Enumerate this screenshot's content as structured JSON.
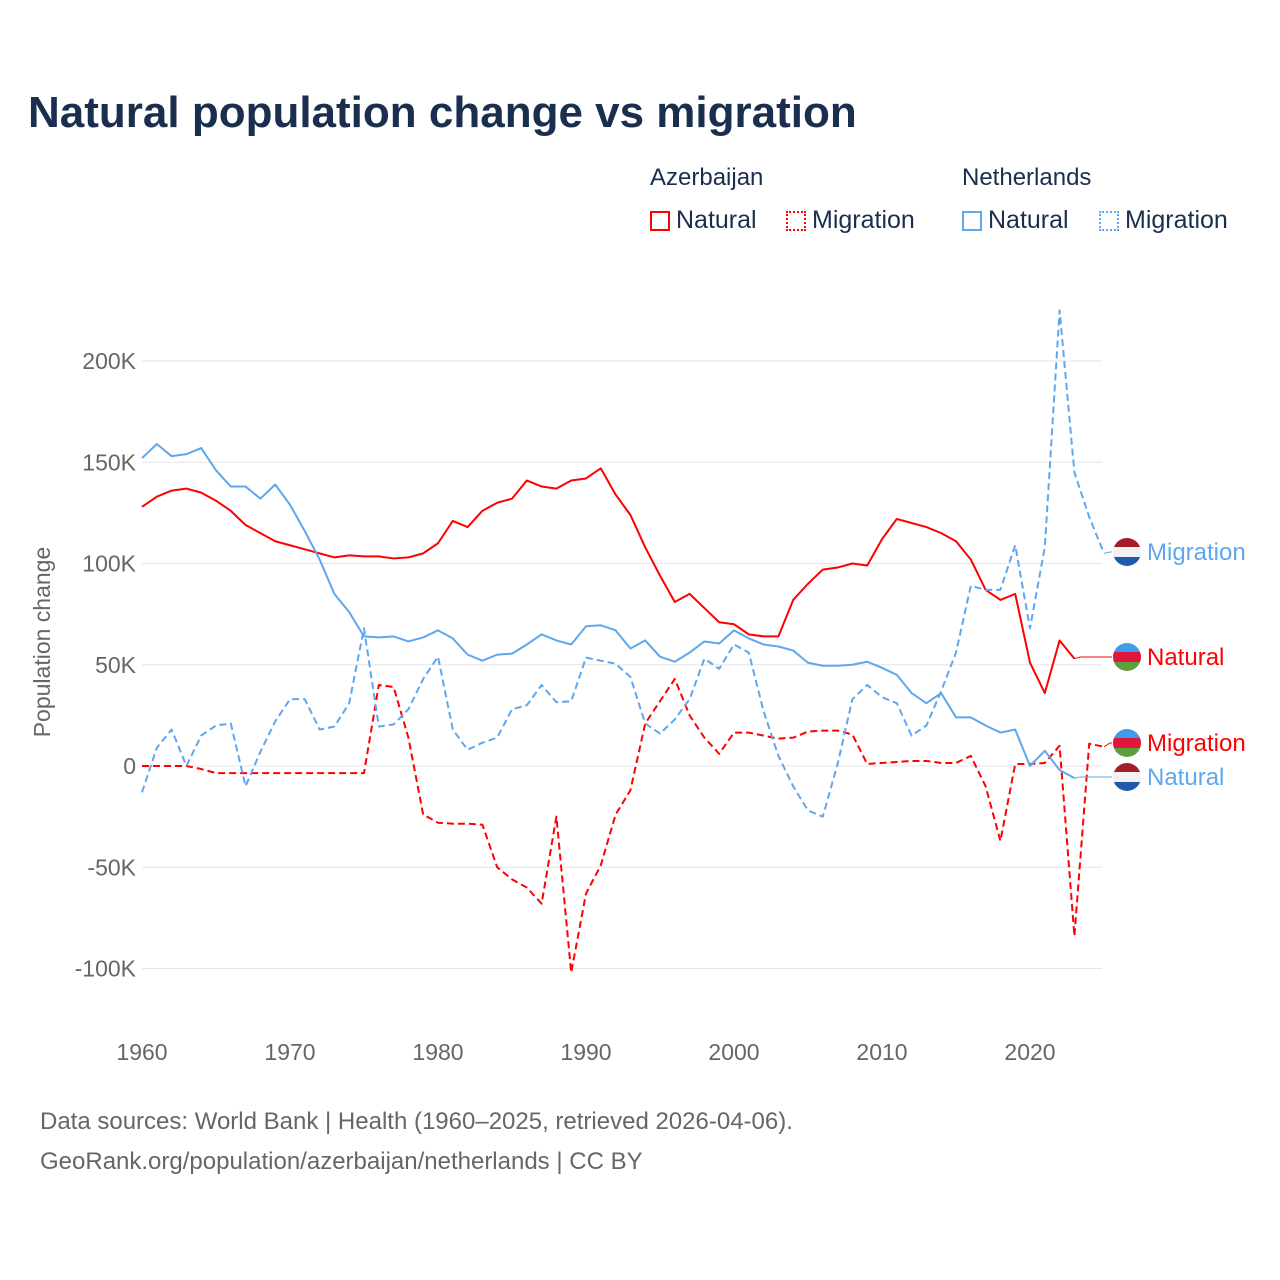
{
  "chart_data": {
    "type": "line",
    "title": "Natural population change vs migration",
    "xlabel": "",
    "ylabel": "Population change",
    "xlim": [
      1960,
      2025
    ],
    "ylim": [
      -120000,
      230000
    ],
    "x_ticks": [
      {
        "v": 1960,
        "label": "1960"
      },
      {
        "v": 1970,
        "label": "1970"
      },
      {
        "v": 1980,
        "label": "1980"
      },
      {
        "v": 1990,
        "label": "1990"
      },
      {
        "v": 2000,
        "label": "2000"
      },
      {
        "v": 2010,
        "label": "2010"
      },
      {
        "v": 2020,
        "label": "2020"
      }
    ],
    "y_ticks": [
      {
        "v": 200000,
        "label": "200K"
      },
      {
        "v": 150000,
        "label": "150K"
      },
      {
        "v": 100000,
        "label": "100K"
      },
      {
        "v": 50000,
        "label": "50K"
      },
      {
        "v": 0,
        "label": "0"
      },
      {
        "v": -50000,
        "label": "-50K"
      },
      {
        "v": -100000,
        "label": "-100K"
      }
    ],
    "grid": true,
    "legend": {
      "groups": [
        {
          "name": "Azerbaijan",
          "items": [
            {
              "label": "Natural",
              "color": "#ff0000",
              "style": "solid"
            },
            {
              "label": "Migration",
              "color": "#ff0000",
              "style": "dotted"
            }
          ]
        },
        {
          "name": "Netherlands",
          "items": [
            {
              "label": "Natural",
              "color": "#5ea7ee",
              "style": "solid"
            },
            {
              "label": "Migration",
              "color": "#5ea7ee",
              "style": "dotted"
            }
          ]
        }
      ],
      "placement": "top-right"
    },
    "series": [
      {
        "name": "Azerbaijan Natural",
        "country": "Azerbaijan",
        "end_label": "Natural",
        "color": "#ff0000",
        "dash": false,
        "start": 1960,
        "values": [
          128000,
          133000,
          136000,
          137000,
          135000,
          131000,
          126000,
          119000,
          115000,
          111000,
          109000,
          107000,
          105000,
          103000,
          104000,
          103500,
          103500,
          102500,
          103000,
          105000,
          110000,
          121000,
          118000,
          126000,
          130000,
          132000,
          141000,
          138000,
          137000,
          141000,
          142000,
          147000,
          134000,
          124000,
          108000,
          94000,
          81000,
          85000,
          78000,
          71000,
          70000,
          65000,
          64000,
          64000,
          82000,
          90000,
          97000,
          98000,
          100000,
          99000,
          112000,
          122000,
          120000,
          118000,
          115000,
          111000,
          102000,
          87000,
          82000,
          85000,
          51000,
          36000,
          62000,
          53000
        ]
      },
      {
        "name": "Azerbaijan Migration",
        "country": "Azerbaijan",
        "end_label": "Migration",
        "color": "#ff0000",
        "dash": true,
        "start": 1960,
        "values": [
          0,
          0,
          0,
          0,
          -1500,
          -3500,
          -3500,
          -3500,
          -3500,
          -3500,
          -3500,
          -3500,
          -3500,
          -3500,
          -3500,
          -3500,
          40000,
          39000,
          14000,
          -24000,
          -28000,
          -28500,
          -28500,
          -29000,
          -50000,
          -56000,
          -60000,
          -68000,
          -25000,
          -102000,
          -63000,
          -49000,
          -24000,
          -12000,
          21000,
          32000,
          43000,
          25000,
          14000,
          6000,
          16500,
          16500,
          15000,
          13500,
          14000,
          17000,
          17500,
          17500,
          15500,
          1000,
          1500,
          2000,
          2500,
          2500,
          1500,
          1500,
          5000,
          -10000,
          -37000,
          1000,
          1000,
          1500,
          10000,
          -84000,
          11000,
          9500
        ]
      },
      {
        "name": "Netherlands Natural",
        "country": "Netherlands",
        "end_label": "Natural",
        "color": "#5ea7ee",
        "dash": false,
        "start": 1960,
        "values": [
          152000,
          159000,
          153000,
          154000,
          157000,
          146000,
          138000,
          138000,
          132000,
          139000,
          129000,
          116000,
          102000,
          85000,
          76000,
          64000,
          63500,
          64000,
          61500,
          63500,
          67000,
          63000,
          55000,
          52000,
          55000,
          55500,
          60000,
          65000,
          62000,
          60000,
          69000,
          69500,
          67000,
          58000,
          62000,
          54000,
          51500,
          56000,
          61500,
          60500,
          67000,
          63000,
          60000,
          59000,
          57000,
          51000,
          49500,
          49500,
          50000,
          51500,
          48500,
          45000,
          36000,
          31000,
          36000,
          24000,
          24000,
          20000,
          16500,
          18000,
          0,
          7500,
          -2000,
          -6000
        ]
      },
      {
        "name": "Netherlands Migration",
        "country": "Netherlands",
        "end_label": "Migration",
        "color": "#5ea7ee",
        "dash": true,
        "start": 1960,
        "values": [
          -13000,
          9000,
          18000,
          0,
          15000,
          20000,
          21000,
          -10000,
          7000,
          22000,
          33000,
          33000,
          18000,
          19500,
          31000,
          68000,
          19500,
          20500,
          28000,
          43000,
          54000,
          18000,
          8000,
          11500,
          14000,
          28000,
          30000,
          40000,
          31500,
          32000,
          53500,
          52000,
          50500,
          44000,
          21000,
          16000,
          23000,
          33000,
          53000,
          48000,
          60000,
          56000,
          27000,
          5000,
          -10000,
          -22000,
          -25000,
          1000,
          33000,
          40000,
          34000,
          31000,
          15000,
          20000,
          37000,
          56000,
          89000,
          87000,
          87000,
          109000,
          68000,
          108000,
          225000,
          145000,
          123000,
          105000
        ]
      }
    ]
  },
  "footer": {
    "line1": "Data sources: World Bank | Health (1960–2025, retrieved 2026-04-06).",
    "line2": "GeoRank.org/population/azerbaijan/netherlands | CC BY"
  }
}
